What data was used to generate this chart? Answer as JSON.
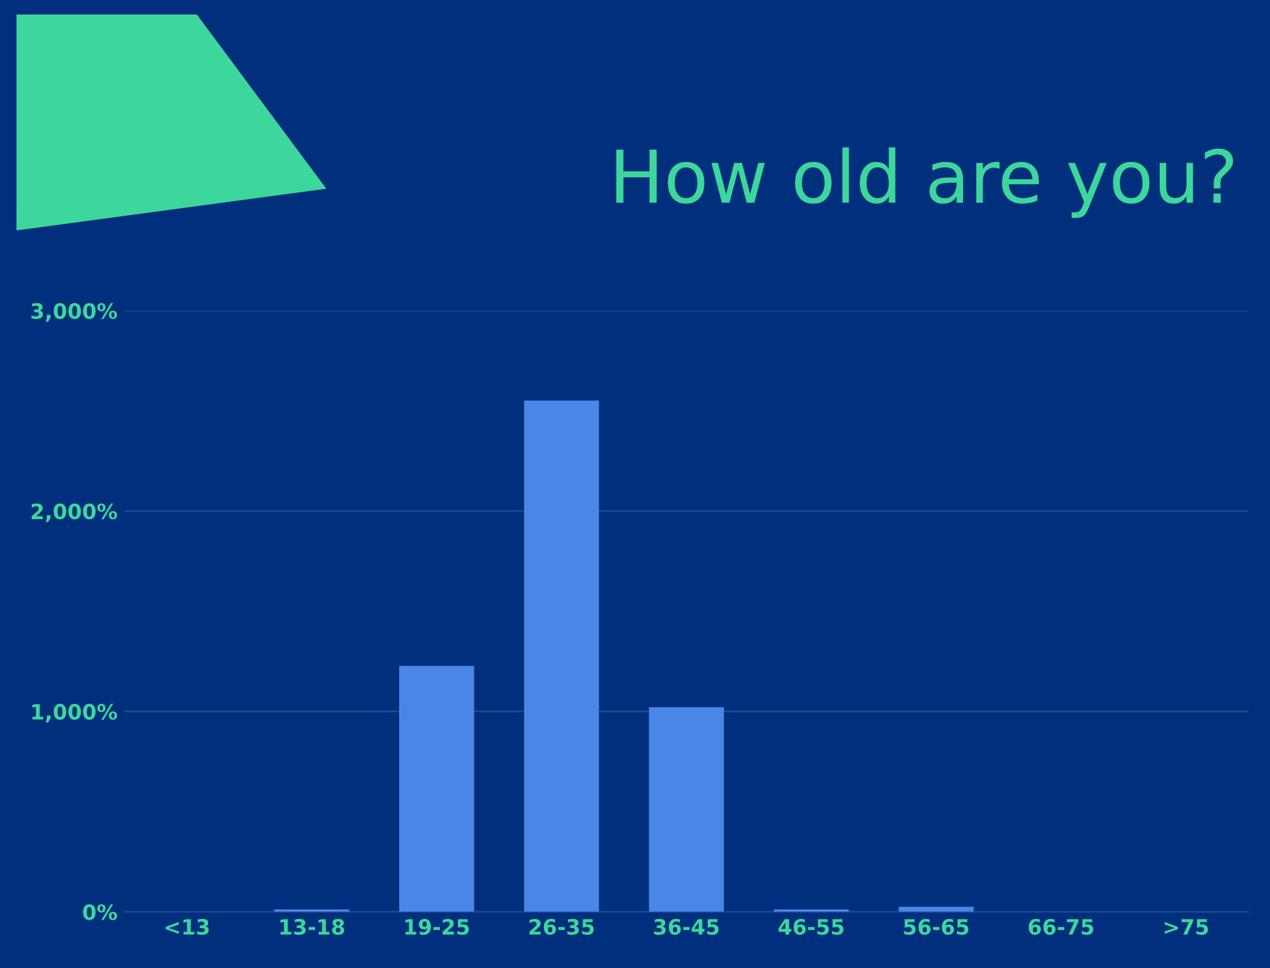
{
  "chart_data": {
    "type": "bar",
    "title": "How old are you?",
    "categories": [
      "<13",
      "13-18",
      "19-25",
      "26-35",
      "36-45",
      "46-55",
      "56-65",
      "66-75",
      ">75"
    ],
    "values": [
      0,
      12,
      1228,
      2552,
      1021,
      12,
      25,
      0,
      0
    ],
    "color": "#4a86e8",
    "ylim": [
      0,
      3000
    ],
    "yticks": [
      {
        "value": 0,
        "label": "0%"
      },
      {
        "value": 1000,
        "label": "1,000%"
      },
      {
        "value": 2000,
        "label": "2,000%"
      },
      {
        "value": 3000,
        "label": "3,000%"
      }
    ],
    "grid": "y"
  }
}
